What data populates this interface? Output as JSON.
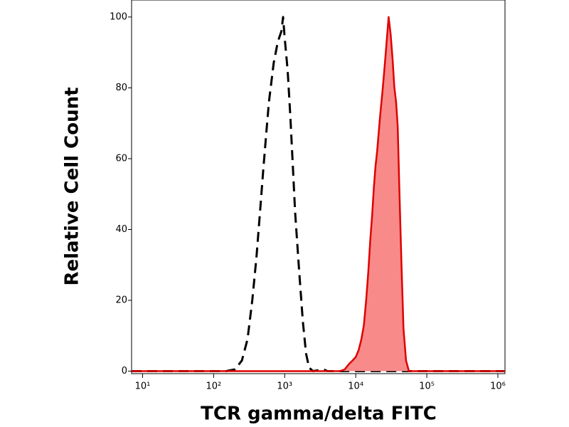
{
  "chart_data": {
    "type": "histogram-overlay",
    "xlabel": "TCR gamma/delta FITC",
    "ylabel": "Relative Cell Count",
    "xscale": "log",
    "xlim": [
      7,
      1260000
    ],
    "ylim": [
      -0.7,
      104.8
    ],
    "xticks": [
      {
        "value": 10,
        "label": "10¹"
      },
      {
        "value": 100,
        "label": "10²"
      },
      {
        "value": 1000,
        "label": "10³"
      },
      {
        "value": 10000,
        "label": "10⁴"
      },
      {
        "value": 100000,
        "label": "10⁵"
      },
      {
        "value": 1000000,
        "label": "10⁶"
      }
    ],
    "yticks": [
      0,
      20,
      40,
      60,
      80,
      100
    ],
    "series": [
      {
        "color": "#000000",
        "dashed": true,
        "filled": false,
        "x": [
          7,
          150,
          200,
          250,
          300,
          350,
          400,
          450,
          500,
          550,
          600,
          700,
          800,
          900,
          950,
          1000,
          1100,
          1200,
          1300,
          1400,
          1600,
          1800,
          2000,
          2200,
          2500,
          3500,
          4000,
          1260000
        ],
        "values": [
          0,
          0,
          0.5,
          3,
          9,
          20,
          32,
          45,
          57,
          67,
          76,
          87,
          93,
          96,
          100,
          94,
          85,
          72,
          58,
          45,
          28,
          14,
          5,
          1,
          0,
          0.5,
          0,
          0
        ]
      },
      {
        "color": "#e00000",
        "fill": "#f88a8a",
        "dashed": false,
        "filled": true,
        "x": [
          7,
          6000,
          7000,
          8000,
          9000,
          10000,
          11000,
          12000,
          13000,
          14000,
          15000,
          16000,
          17000,
          18000,
          19000,
          20000,
          22000,
          24000,
          26000,
          29000,
          31000,
          33000,
          35000,
          37000,
          39000,
          41000,
          44000,
          47000,
          51000,
          56000,
          1260000
        ],
        "values": [
          0,
          0,
          0.5,
          2,
          3,
          4,
          6,
          9,
          13,
          20,
          28,
          37,
          44,
          52,
          58,
          62,
          72,
          80,
          88,
          100,
          95,
          88,
          80,
          76,
          69,
          52,
          30,
          12,
          3,
          0,
          0
        ]
      }
    ]
  }
}
